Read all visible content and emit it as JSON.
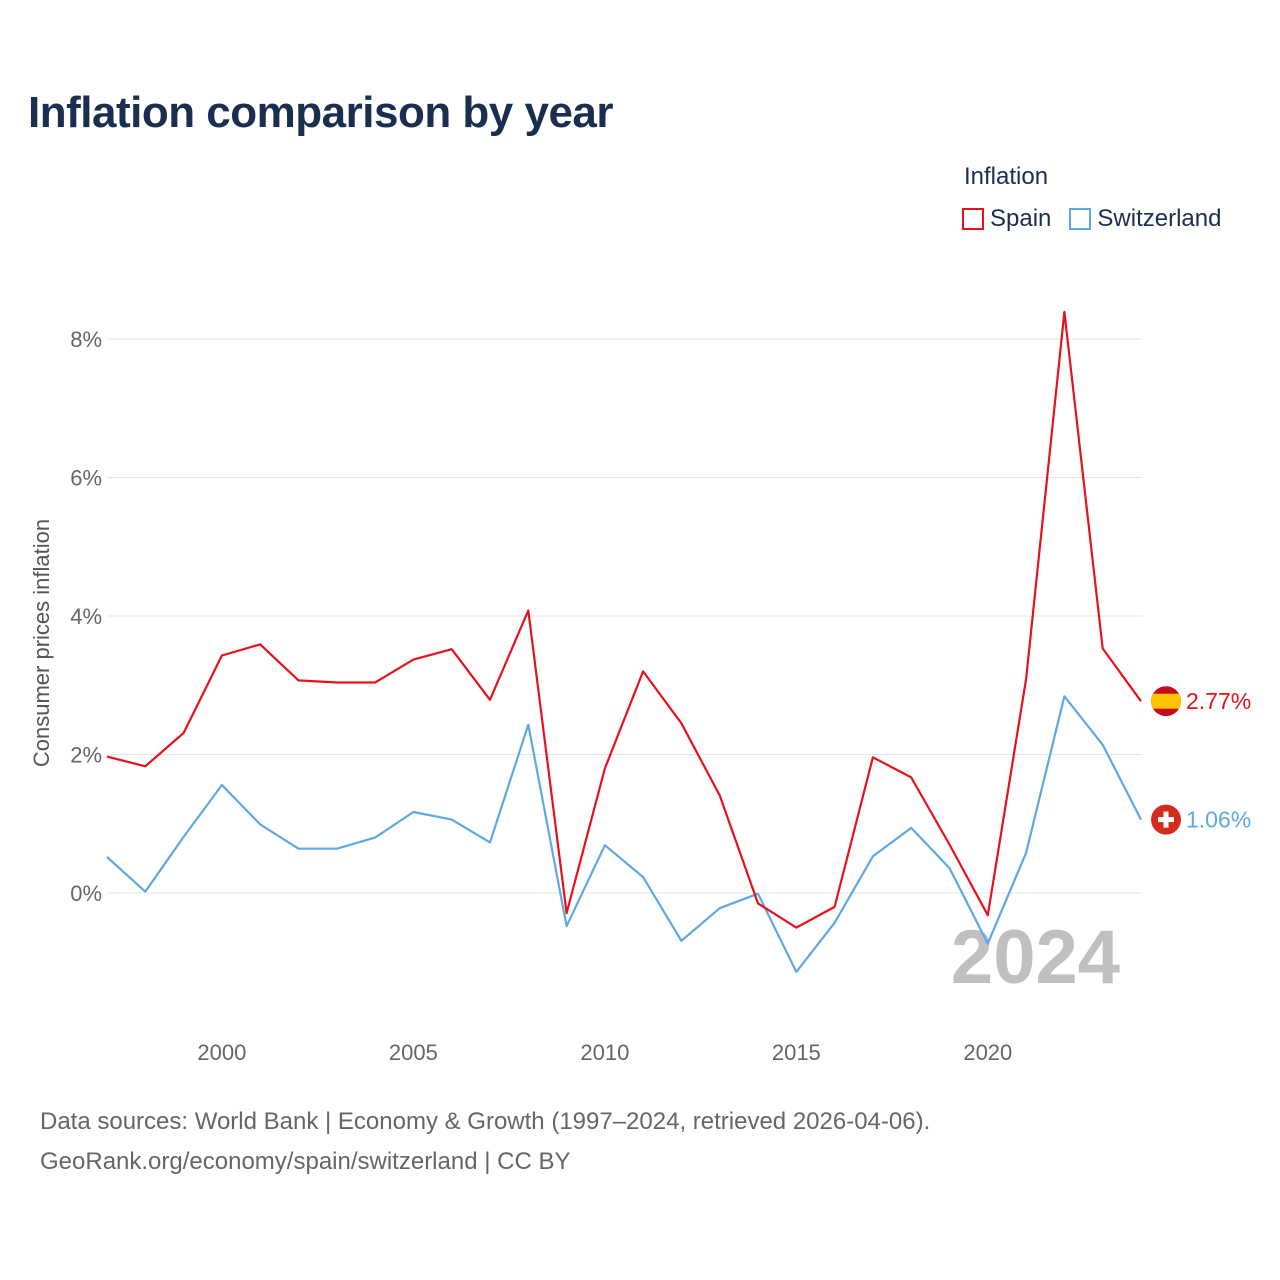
{
  "colors": {
    "spain": "#e8111b",
    "switzerland": "#5fa8e6",
    "title": "#1a2e4f",
    "grid": "#e4e4e4"
  },
  "title": "Inflation comparison by year",
  "legend": {
    "title": "Inflation",
    "items": [
      {
        "name": "Spain",
        "color": "#e8111b"
      },
      {
        "name": "Switzerland",
        "color": "#5fa8e6"
      }
    ]
  },
  "footer": {
    "line1": "Data sources: World Bank | Economy & Growth (1997–2024, retrieved 2026-04-06).",
    "line2": "GeoRank.org/economy/spain/switzerland | CC BY"
  },
  "chart_data": {
    "type": "line",
    "title": "Inflation comparison by year",
    "ylabel": "Consumer prices inflation",
    "xlabel": "",
    "xlim": [
      1997,
      2024
    ],
    "ylim": [
      -1.8,
      9
    ],
    "yticks": [
      0,
      2,
      4,
      6,
      8
    ],
    "ytick_labels": [
      "0%",
      "2%",
      "4%",
      "6%",
      "8%"
    ],
    "xticks": [
      2000,
      2005,
      2010,
      2015,
      2020
    ],
    "xtick_labels": [
      "2000",
      "2005",
      "2010",
      "2015",
      "2020"
    ],
    "grid": true,
    "legend_position": "top-right",
    "year_watermark": "2024",
    "x": [
      1997,
      1998,
      1999,
      2000,
      2001,
      2002,
      2003,
      2004,
      2005,
      2006,
      2007,
      2008,
      2009,
      2010,
      2011,
      2012,
      2013,
      2014,
      2015,
      2016,
      2017,
      2018,
      2019,
      2020,
      2021,
      2022,
      2023,
      2024
    ],
    "series": [
      {
        "name": "Spain",
        "color": "#e8111b",
        "end_label": "2.77%",
        "values": [
          1.97,
          1.83,
          2.31,
          3.43,
          3.59,
          3.07,
          3.04,
          3.04,
          3.37,
          3.52,
          2.79,
          4.08,
          -0.29,
          1.8,
          3.2,
          2.45,
          1.41,
          -0.15,
          -0.5,
          -0.2,
          1.96,
          1.67,
          0.7,
          -0.32,
          3.09,
          8.39,
          3.53,
          2.77
        ]
      },
      {
        "name": "Switzerland",
        "color": "#5fa8e6",
        "end_label": "1.06%",
        "values": [
          0.52,
          0.02,
          0.81,
          1.56,
          0.99,
          0.64,
          0.64,
          0.8,
          1.17,
          1.06,
          0.73,
          2.43,
          -0.48,
          0.69,
          0.23,
          -0.69,
          -0.22,
          -0.01,
          -1.14,
          -0.43,
          0.53,
          0.94,
          0.36,
          -0.73,
          0.58,
          2.84,
          2.14,
          1.06
        ]
      }
    ]
  }
}
